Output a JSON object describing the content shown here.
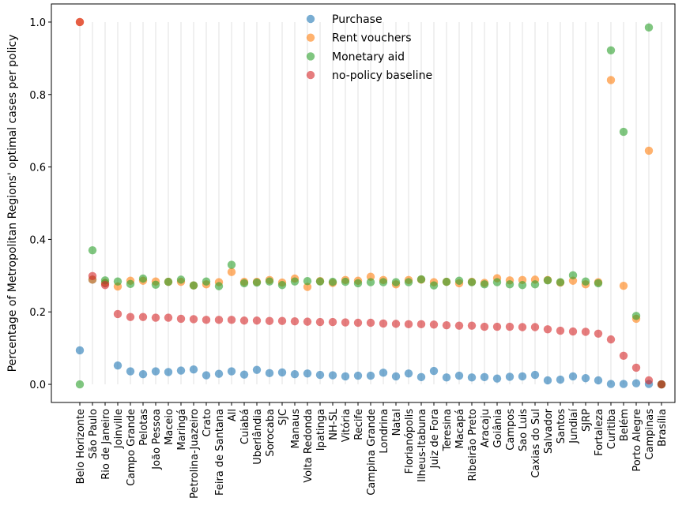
{
  "chart_data": {
    "type": "scatter",
    "title": "",
    "xlabel": "",
    "ylabel": "Percentage of Metropolitan Regions' optimal cases per policy",
    "ylim": [
      -0.05,
      1.05
    ],
    "yticks": [
      0.0,
      0.2,
      0.4,
      0.6,
      0.8,
      1.0
    ],
    "ytick_labels": [
      "0.0",
      "0.2",
      "0.4",
      "0.6",
      "0.8",
      "1.0"
    ],
    "grid": "vertical lines at each category",
    "legend_position": "top-center",
    "categories": [
      "Belo Horizonte",
      "São Paulo",
      "Rio de Janeiro",
      "Joinville",
      "Campo Grande",
      "Pelotas",
      "João Pessoa",
      "Maceio",
      "Maringá",
      "Petrolina-Juazeiro",
      "Crato",
      "Feira de Santana",
      "All",
      "Cuiabá",
      "Uberlândia",
      "Sorocaba",
      "SJC",
      "Manaus",
      "Volta Redonda",
      "Ipatinga",
      "NH-SL",
      "Vitória",
      "Recife",
      "Campina Grande",
      "Londrina",
      "Natal",
      "Florianópolis",
      "Ilheus-Itabuna",
      "Juiz de Fora",
      "Teresina",
      "Macapá",
      "Ribeirão Preto",
      "Aracaju",
      "Goiânia",
      "Campos",
      "Sao Luis",
      "Caxias do Sul",
      "Salvador",
      "Santos",
      "Jundiaí",
      "SJRP",
      "Fortaleza",
      "Curitiba",
      "Belém",
      "Porto Alegre",
      "Campinas",
      "Brasília"
    ],
    "series": [
      {
        "name": "Purchase",
        "color": "#1f77b4",
        "values": [
          0.094,
          0.289,
          0.279,
          0.052,
          0.036,
          0.028,
          0.036,
          0.034,
          0.038,
          0.041,
          0.025,
          0.029,
          0.036,
          0.027,
          0.04,
          0.031,
          0.033,
          0.028,
          0.03,
          0.026,
          0.025,
          0.022,
          0.024,
          0.024,
          0.032,
          0.022,
          0.03,
          0.02,
          0.037,
          0.019,
          0.024,
          0.019,
          0.02,
          0.016,
          0.021,
          0.022,
          0.026,
          0.011,
          0.013,
          0.022,
          0.017,
          0.011,
          0.001,
          0.001,
          0.003,
          0.001,
          0.0
        ]
      },
      {
        "name": "Rent vouchers",
        "color": "#ff7f0e",
        "values": [
          1.0,
          0.289,
          0.28,
          0.27,
          0.286,
          0.286,
          0.284,
          0.283,
          0.283,
          0.273,
          0.276,
          0.282,
          0.31,
          0.283,
          0.283,
          0.288,
          0.281,
          0.292,
          0.269,
          0.285,
          0.28,
          0.288,
          0.286,
          0.297,
          0.288,
          0.276,
          0.288,
          0.289,
          0.282,
          0.283,
          0.279,
          0.283,
          0.28,
          0.293,
          0.287,
          0.288,
          0.289,
          0.288,
          0.281,
          0.286,
          0.276,
          0.282,
          0.84,
          0.272,
          0.181,
          0.645,
          0.0
        ]
      },
      {
        "name": "Monetary aid",
        "color": "#2ca02c",
        "values": [
          0.0,
          0.37,
          0.287,
          0.284,
          0.277,
          0.292,
          0.275,
          0.283,
          0.289,
          0.273,
          0.284,
          0.271,
          0.33,
          0.279,
          0.281,
          0.284,
          0.274,
          0.284,
          0.285,
          0.284,
          0.283,
          0.283,
          0.279,
          0.282,
          0.282,
          0.282,
          0.282,
          0.29,
          0.273,
          0.283,
          0.286,
          0.282,
          0.276,
          0.282,
          0.276,
          0.274,
          0.276,
          0.287,
          0.282,
          0.301,
          0.284,
          0.279,
          0.922,
          0.697,
          0.189,
          0.985,
          0.0
        ]
      },
      {
        "name": "no-policy baseline",
        "color": "#d62728",
        "values": [
          1.0,
          0.299,
          0.274,
          0.194,
          0.186,
          0.186,
          0.184,
          0.184,
          0.181,
          0.18,
          0.178,
          0.178,
          0.178,
          0.176,
          0.176,
          0.175,
          0.175,
          0.174,
          0.173,
          0.172,
          0.172,
          0.171,
          0.17,
          0.17,
          0.168,
          0.167,
          0.166,
          0.166,
          0.165,
          0.163,
          0.162,
          0.162,
          0.159,
          0.159,
          0.159,
          0.158,
          0.158,
          0.152,
          0.148,
          0.146,
          0.145,
          0.14,
          0.124,
          0.079,
          0.046,
          0.011,
          0.0
        ]
      }
    ]
  }
}
